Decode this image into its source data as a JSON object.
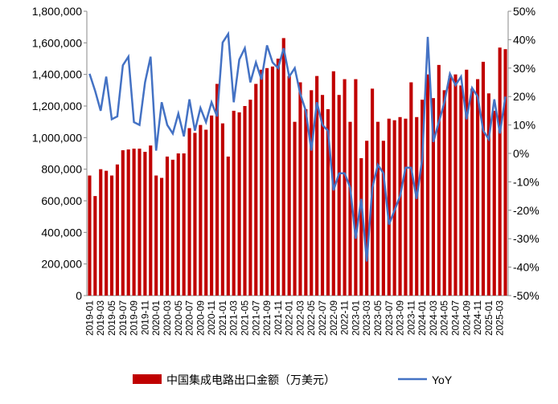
{
  "chart_data": {
    "type": "bar-line",
    "categories": [
      "2019-01",
      null,
      "2019-03",
      null,
      "2019-05",
      null,
      "2019-07",
      null,
      "2019-09",
      null,
      "2019-11",
      null,
      "2020-01",
      null,
      "2020-03",
      null,
      "2020-05",
      null,
      "2020-07",
      null,
      "2020-09",
      null,
      "2020-11",
      null,
      "2021-01",
      null,
      "2021-03",
      null,
      "2021-05",
      null,
      "2021-07",
      null,
      "2021-09",
      null,
      "2021-11",
      null,
      "2022-01",
      null,
      "2022-03",
      null,
      "2022-05",
      null,
      "2022-07",
      null,
      "2022-09",
      null,
      "2022-11",
      null,
      "2023-01",
      null,
      "2023-03",
      null,
      "2023-05",
      null,
      "2023-07",
      null,
      "2023-09",
      null,
      "2023-11",
      null,
      "2024-01",
      null,
      "2024-03",
      null,
      "2024-05",
      null,
      "2024-07",
      null,
      "2024-09",
      null,
      "2024-11",
      null,
      "2025-01",
      null,
      "2025-03",
      null
    ],
    "series": [
      {
        "name": "中国集成电路出口金额（万美元）",
        "color": "#c00000",
        "kind": "bar",
        "values": [
          760000,
          630000,
          800000,
          790000,
          760000,
          830000,
          920000,
          925000,
          930000,
          930000,
          910000,
          950000,
          760000,
          745000,
          880000,
          860000,
          900000,
          900000,
          1060000,
          1030000,
          1080000,
          1050000,
          1140000,
          1340000,
          1090000,
          880000,
          1170000,
          1160000,
          1200000,
          1240000,
          1340000,
          1430000,
          1440000,
          1450000,
          1500000,
          1630000,
          1390000,
          1100000,
          1350000,
          1180000,
          1300000,
          1390000,
          1270000,
          1180000,
          1420000,
          1270000,
          1370000,
          1100000,
          1370000,
          870000,
          980000,
          1310000,
          1100000,
          980000,
          1120000,
          1110000,
          1130000,
          1120000,
          1350000,
          1130000,
          1240000,
          1400000,
          1250000,
          1460000,
          1300000,
          1390000,
          1400000,
          1330000,
          1430000,
          1310000,
          1370000,
          1480000,
          1280000,
          1170000,
          1570000,
          1560000
        ]
      },
      {
        "name": "YoY",
        "color": "#4472c4",
        "kind": "line",
        "axis": "y2",
        "values": [
          28,
          22,
          15,
          27,
          12,
          13,
          31,
          34,
          11,
          10,
          25,
          34,
          1,
          18,
          10,
          7,
          14,
          6,
          19,
          8,
          16,
          11,
          18,
          13,
          39,
          42,
          18,
          33,
          37,
          25,
          32,
          26,
          38,
          32,
          30,
          37,
          27,
          30,
          21,
          15,
          1,
          18,
          10,
          8,
          -13,
          -7,
          -7,
          -12,
          -30,
          -16,
          -38,
          -12,
          -4,
          -7,
          -25,
          -20,
          -15,
          -5,
          -5,
          -16,
          -2,
          41,
          4,
          11,
          18,
          28,
          24,
          27,
          12,
          23,
          20,
          8,
          5,
          19,
          7,
          20
        ]
      }
    ],
    "ylim": [
      0,
      1800000
    ],
    "yticks": [
      0,
      {
        "value": 200000,
        "label": "200,000"
      },
      {
        "value": 400000,
        "label": "400,000"
      },
      {
        "value": 600000,
        "label": "600,000"
      },
      {
        "value": 800000,
        "label": "800,000"
      },
      {
        "value": 1000000,
        "label": "1,000,000"
      },
      {
        "value": 1200000,
        "label": "1,200,000"
      },
      {
        "value": 1400000,
        "label": "1,400,000"
      },
      {
        "value": 1600000,
        "label": "1,600,000"
      },
      {
        "value": 1800000,
        "label": "1,800,000"
      }
    ],
    "y2lim": [
      -50,
      50
    ],
    "y2ticks": [
      {
        "value": -50,
        "label": "-50%"
      },
      {
        "value": -40,
        "label": "-40%"
      },
      {
        "value": -30,
        "label": "-30%"
      },
      {
        "value": -20,
        "label": "-20%"
      },
      {
        "value": -10,
        "label": "-10%"
      },
      {
        "value": 0,
        "label": "0%"
      },
      {
        "value": 10,
        "label": "10%"
      },
      {
        "value": 20,
        "label": "20%"
      },
      {
        "value": 30,
        "label": "30%"
      },
      {
        "value": 40,
        "label": "40%"
      },
      {
        "value": 50,
        "label": "50%"
      }
    ]
  }
}
